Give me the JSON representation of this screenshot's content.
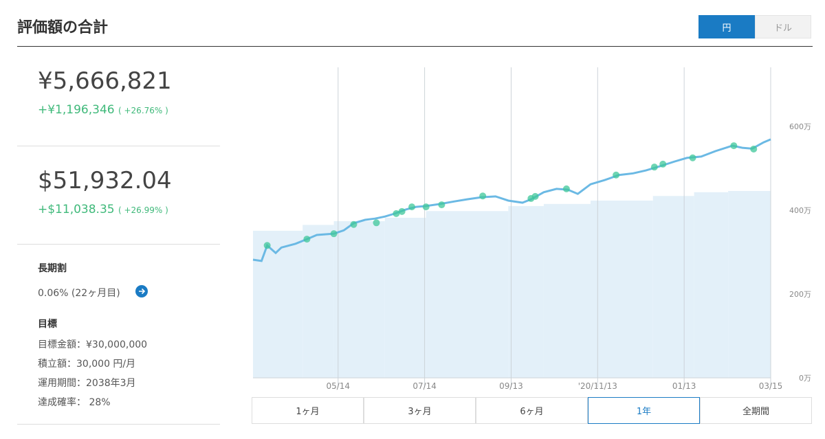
{
  "header": {
    "title": "評価額の合計",
    "currency": [
      "円",
      "ドル"
    ]
  },
  "summary": {
    "yen_total": "¥5,666,821",
    "yen_gain": "+¥1,196,346",
    "yen_gain_pct": "( +26.76% )",
    "usd_total": "$51,932.04",
    "usd_gain": "+$11,038.35",
    "usd_gain_pct": "( +26.99% )"
  },
  "discount": {
    "label": "長期割",
    "text": "0.06% (22ヶ月目)"
  },
  "goal": {
    "label": "目標",
    "lines": [
      "目標金額：¥30,000,000",
      "積立額：30,000 円/月",
      "運用期間：2038年3月",
      "達成確率： 28%"
    ]
  },
  "ranges": [
    "1ヶ月",
    "3ヶ月",
    "6ヶ月",
    "1年",
    "全期間"
  ],
  "selected_range": 3,
  "chart_data": {
    "type": "line",
    "xlim": [
      0,
      365
    ],
    "xticks": [
      {
        "value": 60,
        "label": "05/14"
      },
      {
        "value": 121,
        "label": "07/14"
      },
      {
        "value": 182,
        "label": "09/13"
      },
      {
        "value": 243,
        "label": "'20/11/13"
      },
      {
        "value": 304,
        "label": "01/13"
      },
      {
        "value": 365,
        "label": "03/15"
      }
    ],
    "ylim": [
      0,
      741
    ],
    "yticks": [
      {
        "value": 0,
        "label": "0万"
      },
      {
        "value": 200,
        "label": "200万"
      },
      {
        "value": 400,
        "label": "400万"
      },
      {
        "value": 600,
        "label": "600万"
      }
    ],
    "grid": true,
    "area": {
      "color": "#e3f0f9",
      "x": [
        0,
        35,
        57,
        93,
        122,
        180,
        205,
        238,
        282,
        311,
        335
      ],
      "values": [
        351,
        365,
        374,
        382,
        398,
        410,
        415,
        423,
        434,
        443,
        446
      ]
    },
    "series": [
      {
        "color": "#6bb9e4",
        "x": [
          0,
          6,
          10,
          16,
          20,
          30,
          38,
          45,
          57,
          64,
          71,
          79,
          86,
          93,
          100,
          108,
          115,
          122,
          132,
          142,
          151,
          161,
          171,
          180,
          190,
          196,
          205,
          214,
          222,
          229,
          238,
          248,
          258,
          268,
          277,
          287,
          297,
          306,
          316,
          326,
          338,
          345,
          352,
          360,
          365
        ],
        "values": [
          282,
          279,
          316,
          298,
          311,
          320,
          331,
          341,
          344,
          352,
          369,
          377,
          380,
          385,
          392,
          402,
          408,
          410,
          415,
          421,
          426,
          431,
          433,
          423,
          418,
          426,
          443,
          451,
          449,
          439,
          462,
          472,
          484,
          488,
          495,
          505,
          516,
          525,
          528,
          541,
          554,
          549,
          547,
          562,
          569
        ]
      }
    ],
    "markers": {
      "color": "#3fc79a",
      "x": [
        10,
        38,
        57,
        71,
        87,
        101,
        105,
        112,
        122,
        133,
        162,
        196,
        199,
        221,
        256,
        283,
        289,
        310,
        339,
        353
      ],
      "values": [
        316,
        331,
        344,
        366,
        370,
        392,
        397,
        408,
        408,
        413,
        434,
        428,
        433,
        451,
        484,
        503,
        510,
        525,
        554,
        546
      ]
    }
  }
}
